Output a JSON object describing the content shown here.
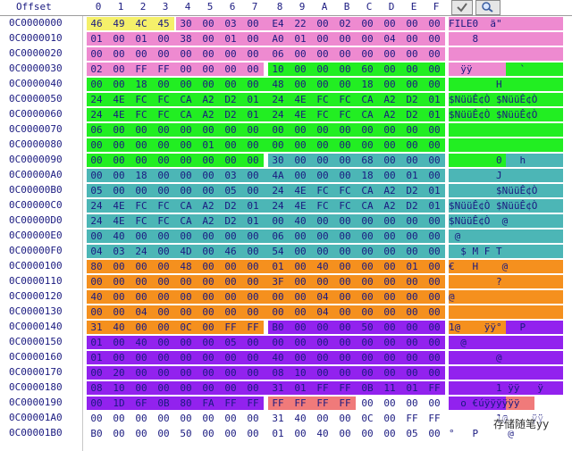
{
  "header": {
    "offset_label": "Offset",
    "columns": [
      "0",
      "1",
      "2",
      "3",
      "4",
      "5",
      "6",
      "7",
      "8",
      "9",
      "A",
      "B",
      "C",
      "D",
      "E",
      "F"
    ]
  },
  "toolbar_icons": [
    "check-icon",
    "search-icon"
  ],
  "colors": {
    "yellow": "#f5f06a",
    "pink": "#ee8ad0",
    "green": "#22ee22",
    "teal": "#4cb6b6",
    "orange": "#f5901e",
    "purple": "#9222ee",
    "salmon": "#f07a7a"
  },
  "rows": [
    {
      "offset": "0C0000000",
      "bytes": [
        "46",
        "49",
        "4C",
        "45",
        "30",
        "00",
        "03",
        "00",
        "E4",
        "22",
        "00",
        "02",
        "00",
        "00",
        "00",
        "00"
      ],
      "ascii": "FILE0  ä\"       ",
      "segs": [
        [
          0,
          4,
          "yellow"
        ],
        [
          4,
          16,
          "pink"
        ]
      ],
      "aseg": [
        [
          0,
          16,
          "pink"
        ]
      ]
    },
    {
      "offset": "0C0000010",
      "bytes": [
        "01",
        "00",
        "01",
        "00",
        "38",
        "00",
        "01",
        "00",
        "A0",
        "01",
        "00",
        "00",
        "00",
        "04",
        "00",
        "00"
      ],
      "ascii": "    8           ",
      "segs": [
        [
          0,
          16,
          "pink"
        ]
      ],
      "aseg": [
        [
          0,
          16,
          "pink"
        ]
      ]
    },
    {
      "offset": "0C0000020",
      "bytes": [
        "00",
        "00",
        "00",
        "00",
        "00",
        "00",
        "00",
        "00",
        "06",
        "00",
        "00",
        "00",
        "00",
        "00",
        "00",
        "00"
      ],
      "ascii": "                ",
      "segs": [
        [
          0,
          16,
          "pink"
        ]
      ],
      "aseg": [
        [
          0,
          16,
          "pink"
        ]
      ]
    },
    {
      "offset": "0C0000030",
      "bytes": [
        "02",
        "00",
        "FF",
        "FF",
        "00",
        "00",
        "00",
        "00",
        "10",
        "00",
        "00",
        "00",
        "60",
        "00",
        "00",
        "00"
      ],
      "ascii": "  ÿÿ        `   ",
      "segs": [
        [
          0,
          8,
          "pink"
        ],
        [
          8,
          16,
          "green"
        ]
      ],
      "aseg": [
        [
          0,
          8,
          "pink"
        ],
        [
          8,
          16,
          "green"
        ]
      ]
    },
    {
      "offset": "0C0000040",
      "bytes": [
        "00",
        "00",
        "18",
        "00",
        "00",
        "00",
        "00",
        "00",
        "48",
        "00",
        "00",
        "00",
        "18",
        "00",
        "00",
        "00"
      ],
      "ascii": "        H       ",
      "segs": [
        [
          0,
          16,
          "green"
        ]
      ],
      "aseg": [
        [
          0,
          16,
          "green"
        ]
      ]
    },
    {
      "offset": "0C0000050",
      "bytes": [
        "24",
        "4E",
        "FC",
        "FC",
        "CA",
        "A2",
        "D2",
        "01",
        "24",
        "4E",
        "FC",
        "FC",
        "CA",
        "A2",
        "D2",
        "01"
      ],
      "ascii": "$NüüÊ¢Ò $NüüÊ¢Ò ",
      "segs": [
        [
          0,
          16,
          "green"
        ]
      ],
      "aseg": [
        [
          0,
          16,
          "green"
        ]
      ]
    },
    {
      "offset": "0C0000060",
      "bytes": [
        "24",
        "4E",
        "FC",
        "FC",
        "CA",
        "A2",
        "D2",
        "01",
        "24",
        "4E",
        "FC",
        "FC",
        "CA",
        "A2",
        "D2",
        "01"
      ],
      "ascii": "$NüüÊ¢Ò $NüüÊ¢Ò ",
      "segs": [
        [
          0,
          16,
          "green"
        ]
      ],
      "aseg": [
        [
          0,
          16,
          "green"
        ]
      ]
    },
    {
      "offset": "0C0000070",
      "bytes": [
        "06",
        "00",
        "00",
        "00",
        "00",
        "00",
        "00",
        "00",
        "00",
        "00",
        "00",
        "00",
        "00",
        "00",
        "00",
        "00"
      ],
      "ascii": "                ",
      "segs": [
        [
          0,
          16,
          "green"
        ]
      ],
      "aseg": [
        [
          0,
          16,
          "green"
        ]
      ]
    },
    {
      "offset": "0C0000080",
      "bytes": [
        "00",
        "00",
        "00",
        "00",
        "00",
        "01",
        "00",
        "00",
        "00",
        "00",
        "00",
        "00",
        "00",
        "00",
        "00",
        "00"
      ],
      "ascii": "                ",
      "segs": [
        [
          0,
          16,
          "green"
        ]
      ],
      "aseg": [
        [
          0,
          16,
          "green"
        ]
      ]
    },
    {
      "offset": "0C0000090",
      "bytes": [
        "00",
        "00",
        "00",
        "00",
        "00",
        "00",
        "00",
        "00",
        "30",
        "00",
        "00",
        "00",
        "68",
        "00",
        "00",
        "00"
      ],
      "ascii": "        0   h   ",
      "segs": [
        [
          0,
          8,
          "green"
        ],
        [
          8,
          16,
          "teal"
        ]
      ],
      "aseg": [
        [
          0,
          8,
          "green"
        ],
        [
          8,
          16,
          "teal"
        ]
      ]
    },
    {
      "offset": "0C00000A0",
      "bytes": [
        "00",
        "00",
        "18",
        "00",
        "00",
        "00",
        "03",
        "00",
        "4A",
        "00",
        "00",
        "00",
        "18",
        "00",
        "01",
        "00"
      ],
      "ascii": "        J       ",
      "segs": [
        [
          0,
          16,
          "teal"
        ]
      ],
      "aseg": [
        [
          0,
          16,
          "teal"
        ]
      ]
    },
    {
      "offset": "0C00000B0",
      "bytes": [
        "05",
        "00",
        "00",
        "00",
        "00",
        "00",
        "05",
        "00",
        "24",
        "4E",
        "FC",
        "FC",
        "CA",
        "A2",
        "D2",
        "01"
      ],
      "ascii": "        $NüüÊ¢Ò ",
      "segs": [
        [
          0,
          16,
          "teal"
        ]
      ],
      "aseg": [
        [
          0,
          16,
          "teal"
        ]
      ]
    },
    {
      "offset": "0C00000C0",
      "bytes": [
        "24",
        "4E",
        "FC",
        "FC",
        "CA",
        "A2",
        "D2",
        "01",
        "24",
        "4E",
        "FC",
        "FC",
        "CA",
        "A2",
        "D2",
        "01"
      ],
      "ascii": "$NüüÊ¢Ò $NüüÊ¢Ò ",
      "segs": [
        [
          0,
          16,
          "teal"
        ]
      ],
      "aseg": [
        [
          0,
          16,
          "teal"
        ]
      ]
    },
    {
      "offset": "0C00000D0",
      "bytes": [
        "24",
        "4E",
        "FC",
        "FC",
        "CA",
        "A2",
        "D2",
        "01",
        "00",
        "40",
        "00",
        "00",
        "00",
        "00",
        "00",
        "00"
      ],
      "ascii": "$NüüÊ¢Ò  @      ",
      "segs": [
        [
          0,
          16,
          "teal"
        ]
      ],
      "aseg": [
        [
          0,
          16,
          "teal"
        ]
      ]
    },
    {
      "offset": "0C00000E0",
      "bytes": [
        "00",
        "40",
        "00",
        "00",
        "00",
        "00",
        "00",
        "00",
        "06",
        "00",
        "00",
        "00",
        "00",
        "00",
        "00",
        "00"
      ],
      "ascii": " @              ",
      "segs": [
        [
          0,
          16,
          "teal"
        ]
      ],
      "aseg": [
        [
          0,
          16,
          "teal"
        ]
      ]
    },
    {
      "offset": "0C00000F0",
      "bytes": [
        "04",
        "03",
        "24",
        "00",
        "4D",
        "00",
        "46",
        "00",
        "54",
        "00",
        "00",
        "00",
        "00",
        "00",
        "00",
        "00"
      ],
      "ascii": "  $ M F T       ",
      "segs": [
        [
          0,
          16,
          "teal"
        ]
      ],
      "aseg": [
        [
          0,
          16,
          "teal"
        ]
      ]
    },
    {
      "offset": "0C0000100",
      "bytes": [
        "80",
        "00",
        "00",
        "00",
        "48",
        "00",
        "00",
        "00",
        "01",
        "00",
        "40",
        "00",
        "00",
        "00",
        "01",
        "00"
      ],
      "ascii": "€   H    @      ",
      "segs": [
        [
          0,
          16,
          "orange"
        ]
      ],
      "aseg": [
        [
          0,
          16,
          "orange"
        ]
      ]
    },
    {
      "offset": "0C0000110",
      "bytes": [
        "00",
        "00",
        "00",
        "00",
        "00",
        "00",
        "00",
        "00",
        "3F",
        "00",
        "00",
        "00",
        "00",
        "00",
        "00",
        "00"
      ],
      "ascii": "        ?       ",
      "segs": [
        [
          0,
          16,
          "orange"
        ]
      ],
      "aseg": [
        [
          0,
          16,
          "orange"
        ]
      ]
    },
    {
      "offset": "0C0000120",
      "bytes": [
        "40",
        "00",
        "00",
        "00",
        "00",
        "00",
        "00",
        "00",
        "00",
        "00",
        "04",
        "00",
        "00",
        "00",
        "00",
        "00"
      ],
      "ascii": "@               ",
      "segs": [
        [
          0,
          16,
          "orange"
        ]
      ],
      "aseg": [
        [
          0,
          16,
          "orange"
        ]
      ]
    },
    {
      "offset": "0C0000130",
      "bytes": [
        "00",
        "00",
        "04",
        "00",
        "00",
        "00",
        "00",
        "00",
        "00",
        "00",
        "04",
        "00",
        "00",
        "00",
        "00",
        "00"
      ],
      "ascii": "                ",
      "segs": [
        [
          0,
          16,
          "orange"
        ]
      ],
      "aseg": [
        [
          0,
          16,
          "orange"
        ]
      ]
    },
    {
      "offset": "0C0000140",
      "bytes": [
        "31",
        "40",
        "00",
        "00",
        "0C",
        "00",
        "FF",
        "FF",
        "B0",
        "00",
        "00",
        "00",
        "50",
        "00",
        "00",
        "00"
      ],
      "ascii": "1@    ÿÿ°   P   ",
      "segs": [
        [
          0,
          8,
          "orange"
        ],
        [
          8,
          16,
          "purple"
        ]
      ],
      "aseg": [
        [
          0,
          8,
          "orange"
        ],
        [
          8,
          16,
          "purple"
        ]
      ]
    },
    {
      "offset": "0C0000150",
      "bytes": [
        "01",
        "00",
        "40",
        "00",
        "00",
        "00",
        "05",
        "00",
        "00",
        "00",
        "00",
        "00",
        "00",
        "00",
        "00",
        "00"
      ],
      "ascii": "  @             ",
      "segs": [
        [
          0,
          16,
          "purple"
        ]
      ],
      "aseg": [
        [
          0,
          16,
          "purple"
        ]
      ]
    },
    {
      "offset": "0C0000160",
      "bytes": [
        "01",
        "00",
        "00",
        "00",
        "00",
        "00",
        "00",
        "00",
        "40",
        "00",
        "00",
        "00",
        "00",
        "00",
        "00",
        "00"
      ],
      "ascii": "        @       ",
      "segs": [
        [
          0,
          16,
          "purple"
        ]
      ],
      "aseg": [
        [
          0,
          16,
          "purple"
        ]
      ]
    },
    {
      "offset": "0C0000170",
      "bytes": [
        "00",
        "20",
        "00",
        "00",
        "00",
        "00",
        "00",
        "00",
        "08",
        "10",
        "00",
        "00",
        "00",
        "00",
        "00",
        "00"
      ],
      "ascii": "                ",
      "segs": [
        [
          0,
          16,
          "purple"
        ]
      ],
      "aseg": [
        [
          0,
          16,
          "purple"
        ]
      ]
    },
    {
      "offset": "0C0000180",
      "bytes": [
        "08",
        "10",
        "00",
        "00",
        "00",
        "00",
        "00",
        "00",
        "31",
        "01",
        "FF",
        "FF",
        "0B",
        "11",
        "01",
        "FF"
      ],
      "ascii": "        1 ÿÿ   ÿ",
      "segs": [
        [
          0,
          16,
          "purple"
        ]
      ],
      "aseg": [
        [
          0,
          16,
          "purple"
        ]
      ]
    },
    {
      "offset": "0C0000190",
      "bytes": [
        "00",
        "1D",
        "6F",
        "0B",
        "80",
        "FA",
        "FF",
        "FF",
        "FF",
        "FF",
        "FF",
        "FF",
        "00",
        "00",
        "00",
        "00"
      ],
      "ascii": "  o €úÿÿÿÿÿÿ    ",
      "segs": [
        [
          0,
          8,
          "purple"
        ],
        [
          8,
          12,
          "salmon"
        ]
      ],
      "aseg": [
        [
          0,
          8,
          "purple"
        ],
        [
          8,
          12,
          "salmon"
        ]
      ]
    },
    {
      "offset": "0C00001A0",
      "bytes": [
        "00",
        "00",
        "00",
        "00",
        "00",
        "00",
        "00",
        "00",
        "31",
        "40",
        "00",
        "00",
        "0C",
        "00",
        "FF",
        "FF"
      ],
      "ascii": "        1@    ÿÿ",
      "segs": [],
      "aseg": []
    },
    {
      "offset": "0C00001B0",
      "bytes": [
        "B0",
        "00",
        "00",
        "00",
        "50",
        "00",
        "00",
        "00",
        "01",
        "00",
        "40",
        "00",
        "00",
        "00",
        "05",
        "00"
      ],
      "ascii": "°   P     @     ",
      "segs": [],
      "aseg": []
    }
  ],
  "watermark": "存储随笔yy"
}
